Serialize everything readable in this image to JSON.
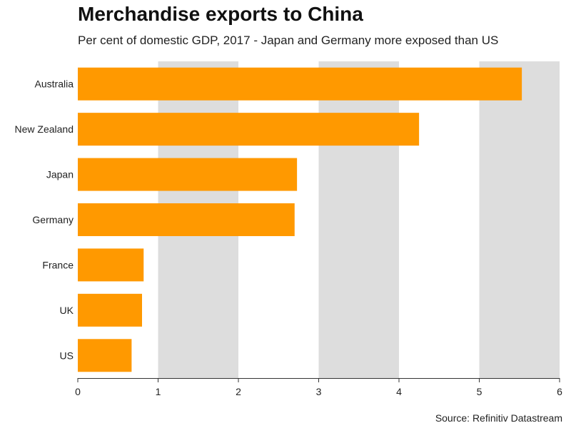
{
  "header": {
    "title": "Merchandise exports to China",
    "subtitle": "Per cent of domestic GDP, 2017 - Japan and Germany more exposed than US"
  },
  "footer": {
    "source": "Source: Refinitiv Datastream"
  },
  "colors": {
    "bar": "#ff9900",
    "band": "#dddddd",
    "axis": "#333333"
  },
  "chart_data": {
    "type": "bar",
    "orientation": "horizontal",
    "categories": [
      "Australia",
      "New Zealand",
      "Japan",
      "Germany",
      "France",
      "UK",
      "US"
    ],
    "values": [
      5.53,
      4.25,
      2.73,
      2.7,
      0.82,
      0.8,
      0.67
    ],
    "title": "Merchandise exports to China",
    "subtitle": "Per cent of domestic GDP, 2017 - Japan and Germany more exposed than US",
    "xlabel": "",
    "ylabel": "",
    "xlim": [
      0,
      6
    ],
    "xticks": [
      "0",
      "1",
      "2",
      "3",
      "4",
      "5",
      "6"
    ],
    "grid": "alternating vertical bands",
    "legend": "none"
  }
}
